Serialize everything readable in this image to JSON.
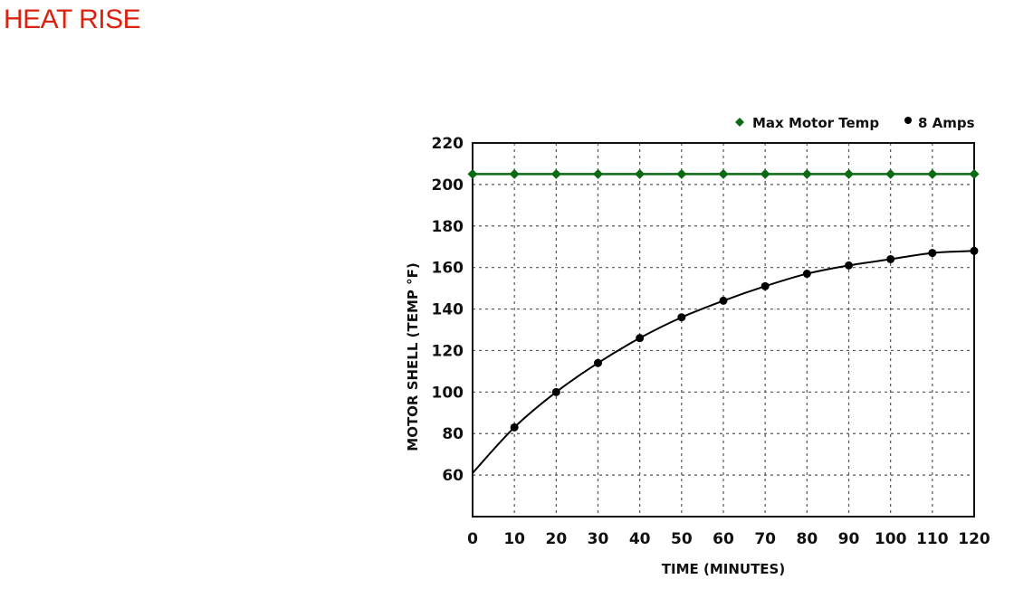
{
  "page": {
    "heading": "HEAT RISE",
    "heading_color": "#d9230f"
  },
  "chart_data": {
    "type": "line",
    "x": [
      0,
      10,
      20,
      30,
      40,
      50,
      60,
      70,
      80,
      90,
      100,
      110,
      120
    ],
    "series": [
      {
        "name": "Max Motor Temp",
        "color": "#0a6b12",
        "marker": "diamond",
        "x": [
          0,
          10,
          20,
          30,
          40,
          50,
          60,
          70,
          80,
          90,
          100,
          110,
          120
        ],
        "values": [
          205,
          205,
          205,
          205,
          205,
          205,
          205,
          205,
          205,
          205,
          205,
          205,
          205
        ]
      },
      {
        "name": "8 Amps",
        "color": "#000000",
        "marker": "circle",
        "x": [
          10,
          20,
          30,
          40,
          50,
          60,
          70,
          80,
          90,
          100,
          110,
          120
        ],
        "values": [
          83,
          100,
          114,
          126,
          136,
          144,
          151,
          157,
          161,
          164,
          167,
          168
        ],
        "curve_start": [
          0,
          61
        ]
      }
    ],
    "xlabel": "TIME (MINUTES)",
    "ylabel": "MOTOR SHELL (TEMP °F)",
    "xlim": [
      0,
      120
    ],
    "ylim": [
      40,
      220
    ],
    "x_ticks": [
      "0",
      "10",
      "20",
      "30",
      "40",
      "50",
      "60",
      "70",
      "80",
      "90",
      "100",
      "110",
      "120"
    ],
    "y_ticks": [
      "60",
      "80",
      "100",
      "120",
      "140",
      "160",
      "180",
      "200",
      "220"
    ],
    "y_tick_values": [
      60,
      80,
      100,
      120,
      140,
      160,
      180,
      200,
      220
    ],
    "grid": true,
    "grid_style": "dashed",
    "legend_position": "top-right"
  }
}
